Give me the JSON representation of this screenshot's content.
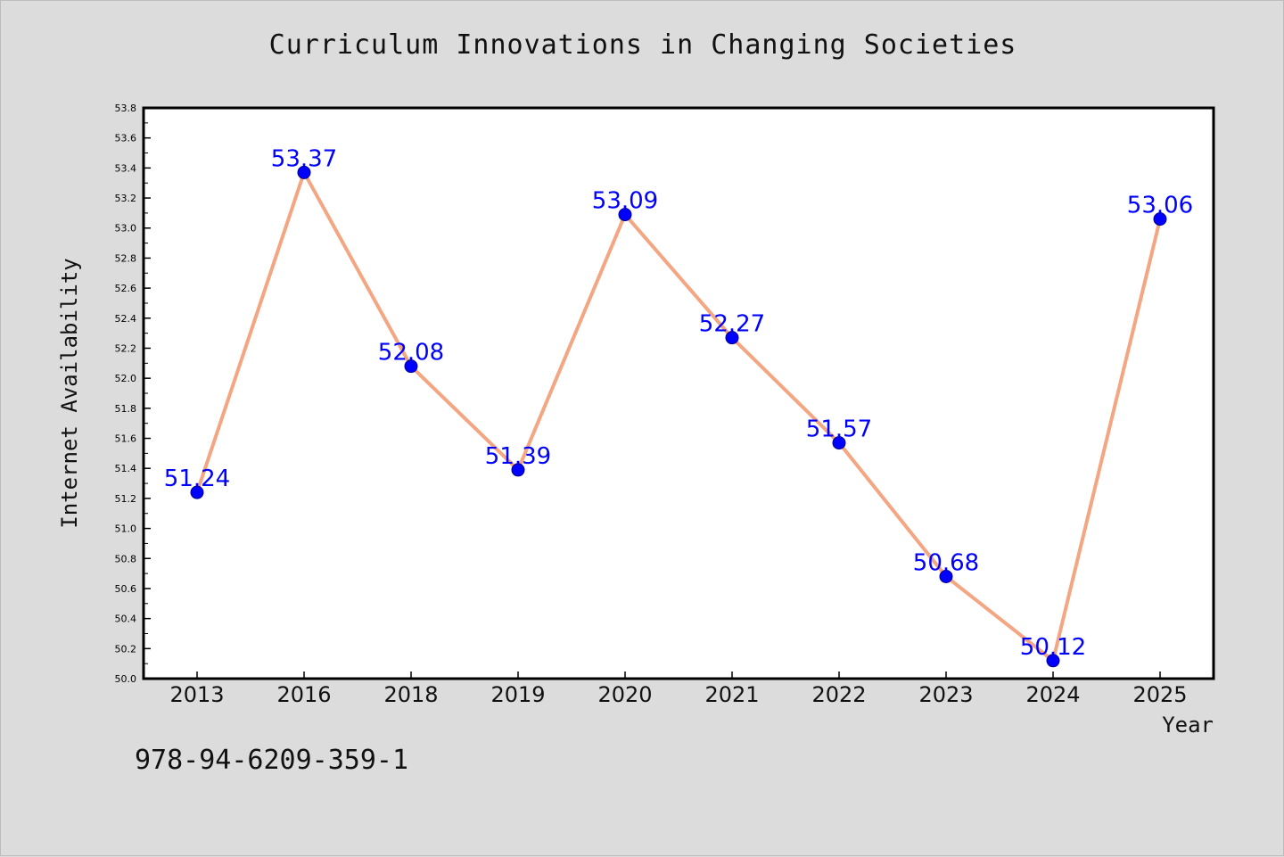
{
  "footer": {
    "isbn": "978-94-6209-359-1"
  },
  "colors": {
    "background": "#dcdcdc",
    "plot_background": "#ffffff",
    "line": "#f4a582",
    "marker": "#0000ff",
    "data_label": "#0000ff"
  },
  "chart_data": {
    "type": "line",
    "title": "Curriculum Innovations in Changing Societies",
    "xlabel": "Year",
    "ylabel": "Internet Availability",
    "categories": [
      "2013",
      "2016",
      "2018",
      "2019",
      "2020",
      "2021",
      "2022",
      "2023",
      "2024",
      "2025"
    ],
    "series": [
      {
        "values": [
          51.24,
          53.37,
          52.08,
          51.39,
          53.09,
          52.27,
          51.57,
          50.68,
          50.12,
          53.06
        ]
      }
    ],
    "data_labels": [
      "51.24",
      "53.37",
      "52.08",
      "51.39",
      "53.09",
      "52.27",
      "51.57",
      "50.68",
      "50.12",
      "53.06"
    ],
    "ylim": [
      50.0,
      53.8
    ],
    "yticks": [
      "50.0",
      "50.2",
      "50.4",
      "50.6",
      "50.8",
      "51.0",
      "51.2",
      "51.4",
      "51.6",
      "51.8",
      "52.0",
      "52.2",
      "52.4",
      "52.6",
      "52.8",
      "53.0",
      "53.2",
      "53.4",
      "53.6",
      "53.8"
    ],
    "grid": false,
    "legend": "none"
  }
}
